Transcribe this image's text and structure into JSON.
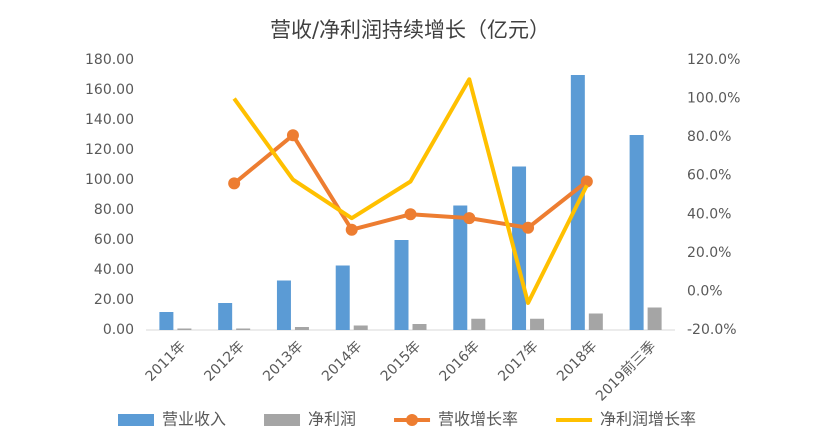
{
  "chart_data": {
    "type": "bar-line",
    "title": "营收/净利润持续增长（亿元）",
    "categories": [
      "2011年",
      "2012年",
      "2013年",
      "2014年",
      "2015年",
      "2016年",
      "2017年",
      "2018年",
      "2019前三季"
    ],
    "series": [
      {
        "name": "营业收入",
        "type": "bar",
        "color": "#5b9bd5",
        "values": [
          12,
          18,
          33,
          43,
          60,
          83,
          109,
          170,
          130
        ]
      },
      {
        "name": "净利润",
        "type": "bar",
        "color": "#a5a5a5",
        "values": [
          1,
          1,
          2,
          3,
          4,
          7.5,
          7.5,
          11,
          15
        ]
      },
      {
        "name": "营收增长率",
        "type": "line",
        "axis": "y2",
        "marker": true,
        "color": "#ed7d31",
        "values": [
          null,
          56,
          81,
          32,
          40,
          38,
          33,
          57,
          null
        ]
      },
      {
        "name": "净利润增长率",
        "type": "line",
        "axis": "y2",
        "marker": false,
        "color": "#ffc000",
        "values": [
          null,
          100,
          58,
          38,
          57,
          110,
          -6,
          55,
          null
        ]
      }
    ],
    "ylim": [
      0,
      180
    ],
    "yticks": [
      {
        "value": 0,
        "label": "0.00"
      },
      {
        "value": 20,
        "label": "20.00"
      },
      {
        "value": 40,
        "label": "40.00"
      },
      {
        "value": 60,
        "label": "60.00"
      },
      {
        "value": 80,
        "label": "80.00"
      },
      {
        "value": 100,
        "label": "100.00"
      },
      {
        "value": 120,
        "label": "120.00"
      },
      {
        "value": 140,
        "label": "140.00"
      },
      {
        "value": 160,
        "label": "160.00"
      },
      {
        "value": 180,
        "label": "180.00"
      }
    ],
    "y2lim": [
      -20,
      120
    ],
    "y2ticks": [
      {
        "value": -20,
        "label": "-20.0%"
      },
      {
        "value": 0,
        "label": "0.0%"
      },
      {
        "value": 20,
        "label": "20.0%"
      },
      {
        "value": 40,
        "label": "40.0%"
      },
      {
        "value": 60,
        "label": "60.0%"
      },
      {
        "value": 80,
        "label": "80.0%"
      },
      {
        "value": 100,
        "label": "100.0%"
      },
      {
        "value": 120,
        "label": "120.0%"
      }
    ],
    "legend": "bottom"
  }
}
